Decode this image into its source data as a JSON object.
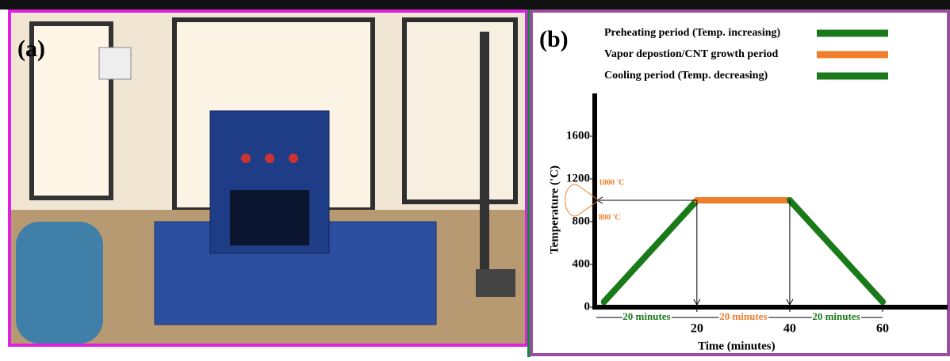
{
  "panels": [
    "(a)",
    "(b)"
  ],
  "chart_data": {
    "type": "line",
    "xlabel": "Time (minutes)",
    "ylabel": "Temperature ('C)",
    "xlim": [
      -2,
      74
    ],
    "ylim": [
      0,
      2000
    ],
    "xticks": [
      20,
      40,
      60
    ],
    "yticks": [
      0,
      400,
      800,
      1200,
      1600
    ],
    "series": [
      {
        "name": "Preheating period (Temp. increasing)",
        "color": "#1a7a1a",
        "x": [
          0,
          20
        ],
        "values": [
          50,
          1000
        ]
      },
      {
        "name": "Vapor depostion/CNT growth period",
        "color": "#f07d2a",
        "x": [
          20,
          40
        ],
        "values": [
          1000,
          1000
        ]
      },
      {
        "name": "Cooling period (Temp. decreasing)",
        "color": "#1a7a1a",
        "x": [
          40,
          60
        ],
        "values": [
          1000,
          50
        ]
      }
    ],
    "annotations": [
      "1000 'C",
      "800 'C",
      "20 minutes",
      "20 minutes",
      "20 minutes"
    ]
  }
}
